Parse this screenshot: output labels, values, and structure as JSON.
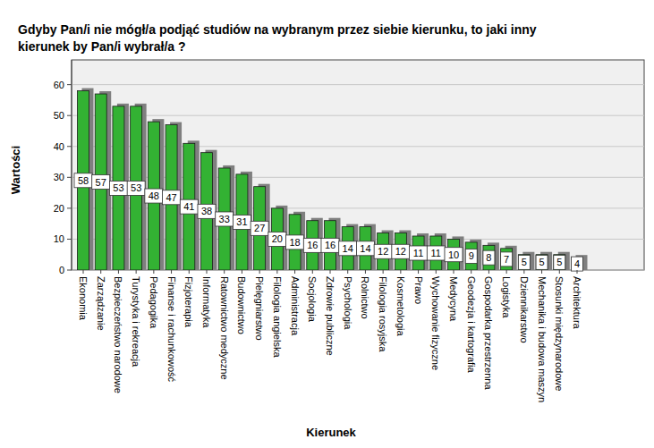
{
  "chart_data": {
    "type": "bar",
    "title": "Gdyby Pan/i  nie mógł/a podjąć studiów na wybranym przez siebie kierunku, to jaki inny kierunek by Pan/i wybrał/a ?",
    "x_label": "Kierunek",
    "y_label": "Wartości",
    "categories": [
      "Ekonomia",
      "Zarządzanie",
      "Bezpieczeństwo narodowe",
      "Turystyka i rekreacja",
      "Pedagogika",
      "Finanse i rachunkowość",
      "Fizjoterapia",
      "Informatyka",
      "Ratownictwo medyczne",
      "Budownictwo",
      "Pielęgniarstwo",
      "Filologia angielska",
      "Administracja",
      "Socjologia",
      "Zdrowie publiczne",
      "Psychologia",
      "Rolnictwo",
      "Filologia rosyjska",
      "Kosmetologia",
      "Prawo",
      "Wychowanie fizyczne",
      "Medycyna",
      "Geodezja i kartografia",
      "Gospodarka przestrzenna",
      "Logistyka",
      "Dziennikarstwo",
      "Mechanika i budowa maszyn",
      "Stosunki międzynarodowe",
      "Architektura"
    ],
    "values": [
      58,
      57,
      53,
      53,
      48,
      47,
      41,
      38,
      33,
      31,
      27,
      20,
      18,
      16,
      16,
      14,
      14,
      12,
      12,
      11,
      11,
      10,
      9,
      8,
      7,
      5,
      5,
      5,
      4
    ],
    "color": "#33b233",
    "ylim": [
      0,
      68
    ],
    "yticks": [
      0,
      10,
      20,
      30,
      40,
      50,
      60
    ],
    "grid": true,
    "data_labels": true
  }
}
